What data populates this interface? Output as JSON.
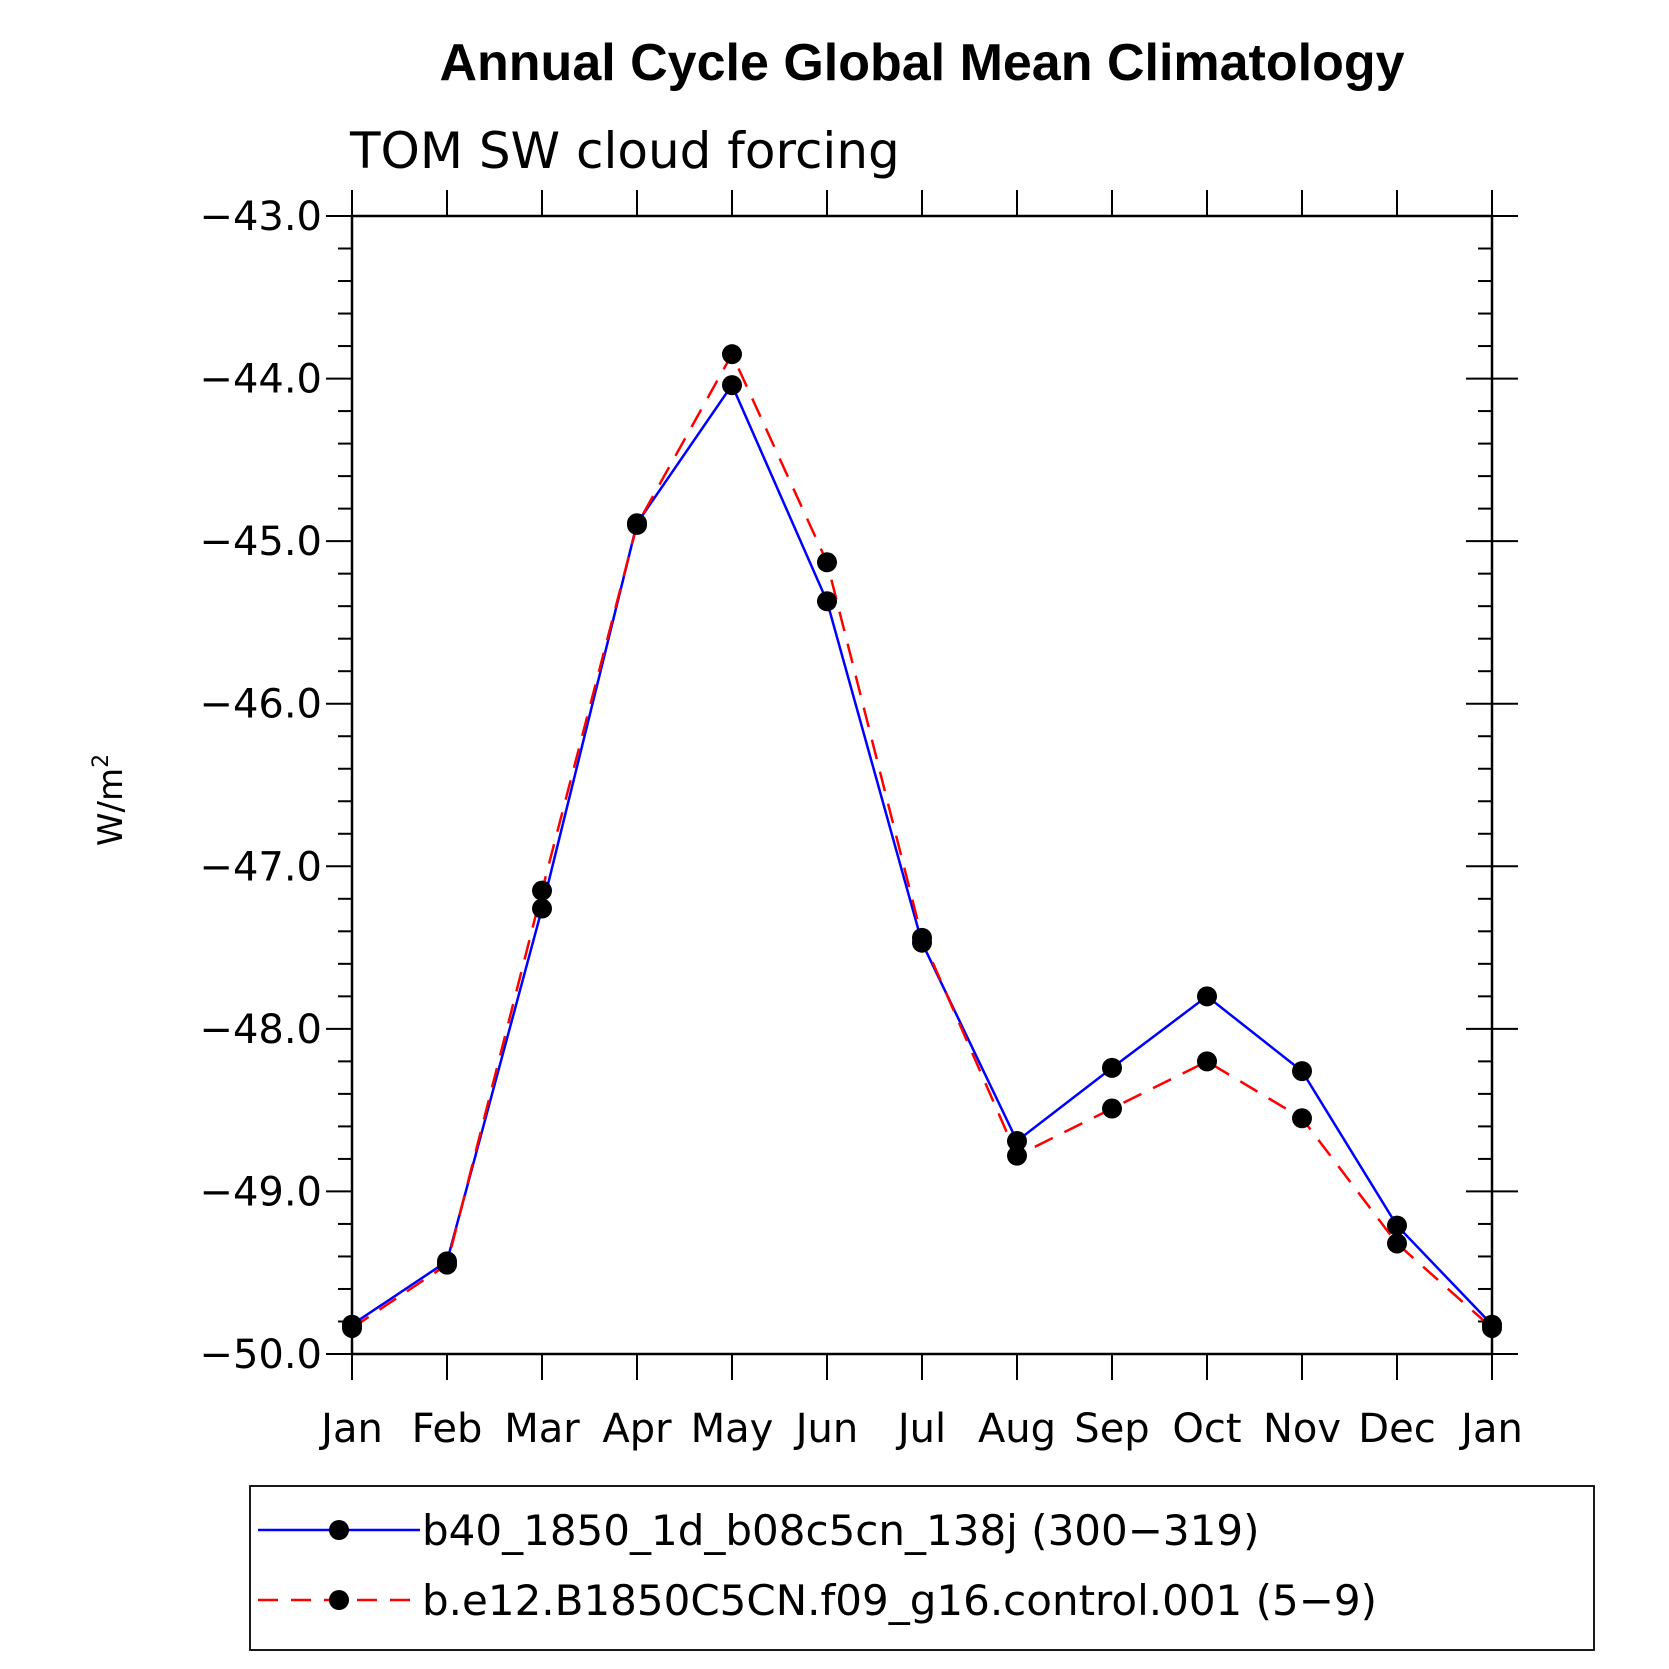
{
  "chart_data": {
    "type": "line",
    "title": "Annual Cycle Global Mean Climatology",
    "subtitle": "TOM SW cloud forcing",
    "ylabel": "W/m",
    "ylabel_sup": "2",
    "xlabel": "",
    "ylim": [
      -50.0,
      -43.0
    ],
    "yticks": [
      "−43.0",
      "−44.0",
      "−45.0",
      "−46.0",
      "−47.0",
      "−48.0",
      "−49.0",
      "−50.0"
    ],
    "ytick_values": [
      -43.0,
      -44.0,
      -45.0,
      -46.0,
      -47.0,
      -48.0,
      -49.0,
      -50.0
    ],
    "categories": [
      "Jan",
      "Feb",
      "Mar",
      "Apr",
      "May",
      "Jun",
      "Jul",
      "Aug",
      "Sep",
      "Oct",
      "Nov",
      "Dec",
      "Jan"
    ],
    "series": [
      {
        "name": "b40_1850_1d_b08c5cn_138j (300−319)",
        "color": "#0000ff",
        "dash": "solid",
        "values": [
          -49.82,
          -49.43,
          -47.26,
          -44.89,
          -44.04,
          -45.37,
          -47.47,
          -48.69,
          -48.24,
          -47.8,
          -48.26,
          -49.21,
          -49.82
        ]
      },
      {
        "name": "b.e12.B1850C5CN.f09_g16.control.001 (5−9)",
        "color": "#ff0000",
        "dash": "dashed",
        "values": [
          -49.84,
          -49.45,
          -47.15,
          -44.9,
          -43.85,
          -45.13,
          -47.44,
          -48.78,
          -48.49,
          -48.2,
          -48.55,
          -49.32,
          -49.84
        ]
      }
    ],
    "legend_position": "bottom",
    "marker": "filled-circle",
    "marker_color": "#000000"
  }
}
